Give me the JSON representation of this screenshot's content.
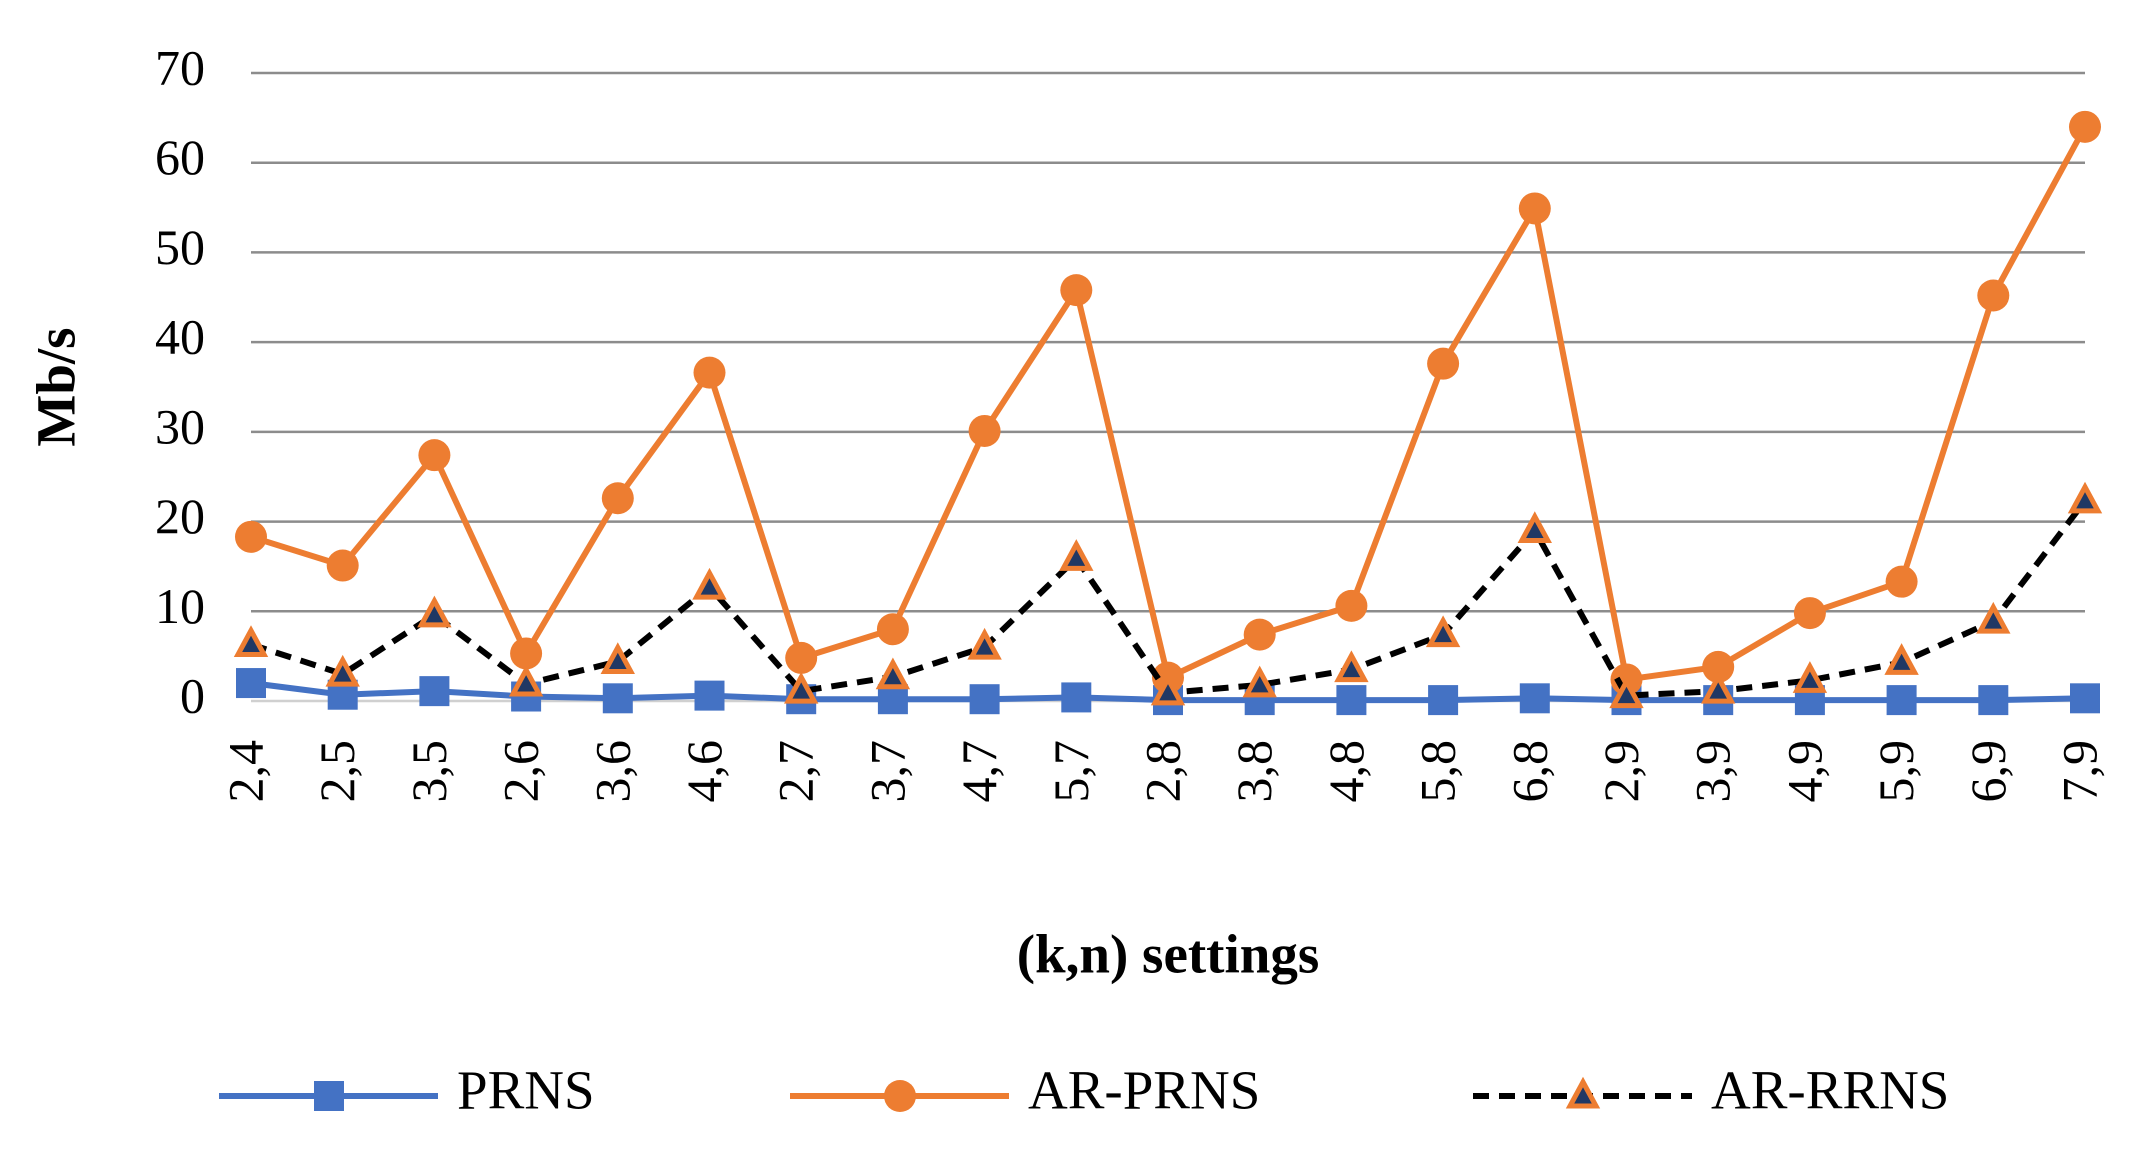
{
  "chart_data": {
    "type": "line",
    "x_label": "(k,n) settings",
    "y_label": "Mb/s",
    "categories": [
      "2,4",
      "2,5",
      "3,5",
      "2,6",
      "3,6",
      "4,6",
      "2,7",
      "3,7",
      "4,7",
      "5,7",
      "2,8",
      "3,8",
      "4,8",
      "5,8",
      "6,8",
      "2,9",
      "3,9",
      "4,9",
      "5,9",
      "6,9",
      "7,9"
    ],
    "series": [
      {
        "name": "PRNS",
        "color": "#4472C4",
        "marker": "square",
        "dash": false,
        "values": [
          2,
          0.7,
          1.1,
          0.5,
          0.3,
          0.6,
          0.2,
          0.2,
          0.2,
          0.4,
          0.1,
          0.1,
          0.1,
          0.1,
          0.3,
          0.1,
          0.1,
          0.1,
          0.1,
          0.1,
          0.3
        ]
      },
      {
        "name": "AR-PRNS",
        "color": "#ED7D31",
        "marker": "circle",
        "dash": false,
        "values": [
          18.3,
          15.1,
          27.4,
          5.3,
          22.6,
          36.6,
          4.8,
          8.0,
          30.1,
          45.8,
          2.6,
          7.4,
          10.6,
          37.6,
          54.9,
          2.4,
          3.8,
          9.8,
          13.3,
          45.2,
          64
        ]
      },
      {
        "name": "AR-RRNS",
        "color": "#000000",
        "marker": "triangle",
        "marker_color": "#ED7D31",
        "dash": true,
        "values": [
          6.3,
          3.0,
          9.6,
          1.9,
          4.4,
          12.7,
          1.1,
          2.7,
          6.0,
          15.9,
          0.9,
          1.8,
          3.5,
          7.4,
          19.0,
          0.6,
          1.1,
          2.3,
          4.3,
          8.9,
          22.3
        ]
      }
    ],
    "ylim": [
      0,
      70
    ],
    "yticks": [
      0,
      10,
      20,
      30,
      40,
      50,
      60,
      70
    ],
    "grid": true,
    "legend": "bottom"
  }
}
